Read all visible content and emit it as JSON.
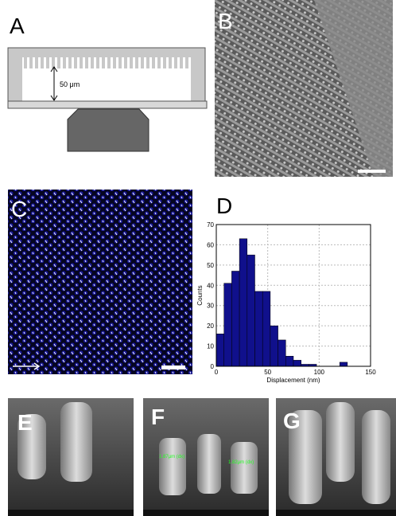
{
  "panels": {
    "a": {
      "label": "A",
      "dimension": "50 μm"
    },
    "b": {
      "label": "B"
    },
    "c": {
      "label": "C"
    },
    "d": {
      "label": "D"
    },
    "e": {
      "label": "E"
    },
    "f": {
      "label": "F",
      "notes": [
        "1.87µm (dx)",
        "1.82µm (dx)"
      ]
    },
    "g": {
      "label": "G"
    }
  },
  "chart_data": {
    "type": "histogram",
    "xlabel": "Displacement (nm)",
    "ylabel": "Counts",
    "bins": [
      0,
      7.5,
      15,
      22.5,
      30,
      37.5,
      45,
      52.5,
      60,
      67.5,
      75,
      82.5,
      90,
      97.5,
      105,
      112.5,
      120,
      127.5,
      135,
      142.5,
      150
    ],
    "counts": [
      16,
      41,
      47,
      63,
      55,
      37,
      37,
      20,
      13,
      5,
      3,
      1,
      1,
      0,
      0,
      0,
      2,
      0,
      0,
      0
    ],
    "color": "#10108c",
    "xlim": [
      0,
      150
    ],
    "xticks": [
      0,
      50,
      100,
      150
    ],
    "ylim": [
      0,
      70
    ],
    "yticks": [
      0,
      10,
      20,
      30,
      40,
      50,
      60,
      70
    ],
    "grid": true
  }
}
